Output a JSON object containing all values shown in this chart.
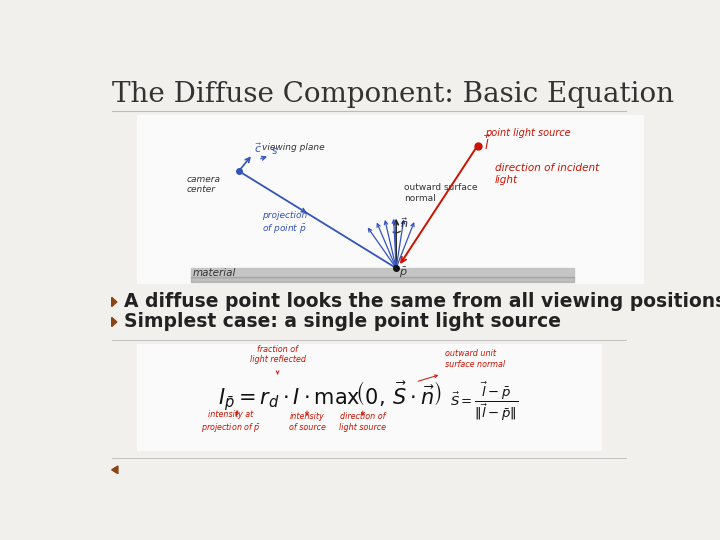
{
  "title": "The Diffuse Component: Basic Equation",
  "title_fontsize": 20,
  "title_color": "#333333",
  "bg_color": "#f2f0ec",
  "slide_bg": "#ffffff",
  "bullet1": "A diffuse point looks the same from all viewing positions",
  "bullet2": "Simplest case: a single point light source",
  "bullet_fontsize": 13.5,
  "bullet_color": "#222222",
  "bullet_marker_color": "#8b4513",
  "diagram_blue": "#3355bb",
  "diagram_red": "#cc1100",
  "diagram_black": "#222222",
  "annotation_red": "#cc1100",
  "annotation_blue": "#3355bb",
  "handwrite_red": "#cc1100",
  "handwrite_blue": "#2244aa"
}
